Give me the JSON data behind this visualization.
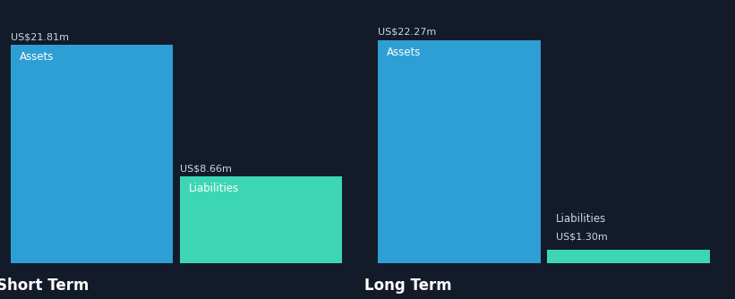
{
  "background_color": "#131b2a",
  "short_term": {
    "assets_value": 21.81,
    "liabilities_value": 8.66,
    "assets_label": "US$21.81m",
    "liabilities_label": "US$8.66m",
    "assets_text": "Assets",
    "liabilities_text": "Liabilities",
    "title": "Short Term"
  },
  "long_term": {
    "assets_value": 22.27,
    "liabilities_value": 1.3,
    "assets_label": "US$22.27m",
    "liabilities_label": "US$1.30m",
    "assets_text": "Assets",
    "liabilities_text": "Liabilities",
    "title": "Long Term"
  },
  "assets_color": "#2e9fd4",
  "liabilities_color": "#3dd6b5",
  "label_color": "#ffffff",
  "title_color": "#ffffff",
  "value_label_color": "#c8daea",
  "title_fontsize": 12,
  "label_fontsize": 8.5,
  "value_fontsize": 8,
  "max_value": 24.5,
  "divider_color": "#2a3a4a",
  "divider_lw": 0.8
}
